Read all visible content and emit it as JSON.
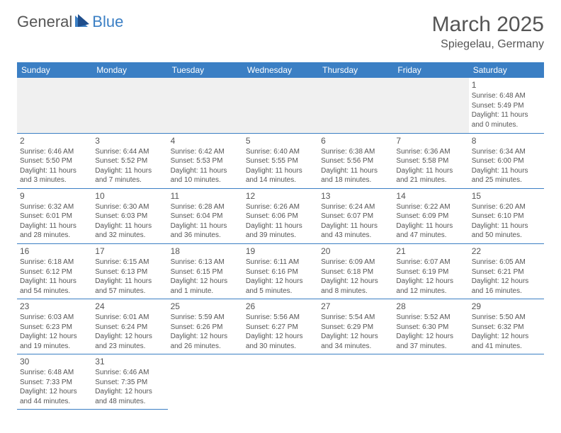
{
  "logo": {
    "part1": "General",
    "part2": "Blue"
  },
  "title": "March 2025",
  "subtitle": "Spiegelau, Germany",
  "colors": {
    "header_bg": "#3b7fc4",
    "header_text": "#ffffff",
    "border": "#3b7fc4",
    "body_text": "#555555",
    "empty_row_bg": "#f0f0f0",
    "page_bg": "#ffffff"
  },
  "days_of_week": [
    "Sunday",
    "Monday",
    "Tuesday",
    "Wednesday",
    "Thursday",
    "Friday",
    "Saturday"
  ],
  "weeks": [
    [
      null,
      null,
      null,
      null,
      null,
      null,
      {
        "n": "1",
        "sr": "Sunrise: 6:48 AM",
        "ss": "Sunset: 5:49 PM",
        "d1": "Daylight: 11 hours",
        "d2": "and 0 minutes."
      }
    ],
    [
      {
        "n": "2",
        "sr": "Sunrise: 6:46 AM",
        "ss": "Sunset: 5:50 PM",
        "d1": "Daylight: 11 hours",
        "d2": "and 3 minutes."
      },
      {
        "n": "3",
        "sr": "Sunrise: 6:44 AM",
        "ss": "Sunset: 5:52 PM",
        "d1": "Daylight: 11 hours",
        "d2": "and 7 minutes."
      },
      {
        "n": "4",
        "sr": "Sunrise: 6:42 AM",
        "ss": "Sunset: 5:53 PM",
        "d1": "Daylight: 11 hours",
        "d2": "and 10 minutes."
      },
      {
        "n": "5",
        "sr": "Sunrise: 6:40 AM",
        "ss": "Sunset: 5:55 PM",
        "d1": "Daylight: 11 hours",
        "d2": "and 14 minutes."
      },
      {
        "n": "6",
        "sr": "Sunrise: 6:38 AM",
        "ss": "Sunset: 5:56 PM",
        "d1": "Daylight: 11 hours",
        "d2": "and 18 minutes."
      },
      {
        "n": "7",
        "sr": "Sunrise: 6:36 AM",
        "ss": "Sunset: 5:58 PM",
        "d1": "Daylight: 11 hours",
        "d2": "and 21 minutes."
      },
      {
        "n": "8",
        "sr": "Sunrise: 6:34 AM",
        "ss": "Sunset: 6:00 PM",
        "d1": "Daylight: 11 hours",
        "d2": "and 25 minutes."
      }
    ],
    [
      {
        "n": "9",
        "sr": "Sunrise: 6:32 AM",
        "ss": "Sunset: 6:01 PM",
        "d1": "Daylight: 11 hours",
        "d2": "and 28 minutes."
      },
      {
        "n": "10",
        "sr": "Sunrise: 6:30 AM",
        "ss": "Sunset: 6:03 PM",
        "d1": "Daylight: 11 hours",
        "d2": "and 32 minutes."
      },
      {
        "n": "11",
        "sr": "Sunrise: 6:28 AM",
        "ss": "Sunset: 6:04 PM",
        "d1": "Daylight: 11 hours",
        "d2": "and 36 minutes."
      },
      {
        "n": "12",
        "sr": "Sunrise: 6:26 AM",
        "ss": "Sunset: 6:06 PM",
        "d1": "Daylight: 11 hours",
        "d2": "and 39 minutes."
      },
      {
        "n": "13",
        "sr": "Sunrise: 6:24 AM",
        "ss": "Sunset: 6:07 PM",
        "d1": "Daylight: 11 hours",
        "d2": "and 43 minutes."
      },
      {
        "n": "14",
        "sr": "Sunrise: 6:22 AM",
        "ss": "Sunset: 6:09 PM",
        "d1": "Daylight: 11 hours",
        "d2": "and 47 minutes."
      },
      {
        "n": "15",
        "sr": "Sunrise: 6:20 AM",
        "ss": "Sunset: 6:10 PM",
        "d1": "Daylight: 11 hours",
        "d2": "and 50 minutes."
      }
    ],
    [
      {
        "n": "16",
        "sr": "Sunrise: 6:18 AM",
        "ss": "Sunset: 6:12 PM",
        "d1": "Daylight: 11 hours",
        "d2": "and 54 minutes."
      },
      {
        "n": "17",
        "sr": "Sunrise: 6:15 AM",
        "ss": "Sunset: 6:13 PM",
        "d1": "Daylight: 11 hours",
        "d2": "and 57 minutes."
      },
      {
        "n": "18",
        "sr": "Sunrise: 6:13 AM",
        "ss": "Sunset: 6:15 PM",
        "d1": "Daylight: 12 hours",
        "d2": "and 1 minute."
      },
      {
        "n": "19",
        "sr": "Sunrise: 6:11 AM",
        "ss": "Sunset: 6:16 PM",
        "d1": "Daylight: 12 hours",
        "d2": "and 5 minutes."
      },
      {
        "n": "20",
        "sr": "Sunrise: 6:09 AM",
        "ss": "Sunset: 6:18 PM",
        "d1": "Daylight: 12 hours",
        "d2": "and 8 minutes."
      },
      {
        "n": "21",
        "sr": "Sunrise: 6:07 AM",
        "ss": "Sunset: 6:19 PM",
        "d1": "Daylight: 12 hours",
        "d2": "and 12 minutes."
      },
      {
        "n": "22",
        "sr": "Sunrise: 6:05 AM",
        "ss": "Sunset: 6:21 PM",
        "d1": "Daylight: 12 hours",
        "d2": "and 16 minutes."
      }
    ],
    [
      {
        "n": "23",
        "sr": "Sunrise: 6:03 AM",
        "ss": "Sunset: 6:23 PM",
        "d1": "Daylight: 12 hours",
        "d2": "and 19 minutes."
      },
      {
        "n": "24",
        "sr": "Sunrise: 6:01 AM",
        "ss": "Sunset: 6:24 PM",
        "d1": "Daylight: 12 hours",
        "d2": "and 23 minutes."
      },
      {
        "n": "25",
        "sr": "Sunrise: 5:59 AM",
        "ss": "Sunset: 6:26 PM",
        "d1": "Daylight: 12 hours",
        "d2": "and 26 minutes."
      },
      {
        "n": "26",
        "sr": "Sunrise: 5:56 AM",
        "ss": "Sunset: 6:27 PM",
        "d1": "Daylight: 12 hours",
        "d2": "and 30 minutes."
      },
      {
        "n": "27",
        "sr": "Sunrise: 5:54 AM",
        "ss": "Sunset: 6:29 PM",
        "d1": "Daylight: 12 hours",
        "d2": "and 34 minutes."
      },
      {
        "n": "28",
        "sr": "Sunrise: 5:52 AM",
        "ss": "Sunset: 6:30 PM",
        "d1": "Daylight: 12 hours",
        "d2": "and 37 minutes."
      },
      {
        "n": "29",
        "sr": "Sunrise: 5:50 AM",
        "ss": "Sunset: 6:32 PM",
        "d1": "Daylight: 12 hours",
        "d2": "and 41 minutes."
      }
    ],
    [
      {
        "n": "30",
        "sr": "Sunrise: 6:48 AM",
        "ss": "Sunset: 7:33 PM",
        "d1": "Daylight: 12 hours",
        "d2": "and 44 minutes."
      },
      {
        "n": "31",
        "sr": "Sunrise: 6:46 AM",
        "ss": "Sunset: 7:35 PM",
        "d1": "Daylight: 12 hours",
        "d2": "and 48 minutes."
      },
      null,
      null,
      null,
      null,
      null
    ]
  ]
}
